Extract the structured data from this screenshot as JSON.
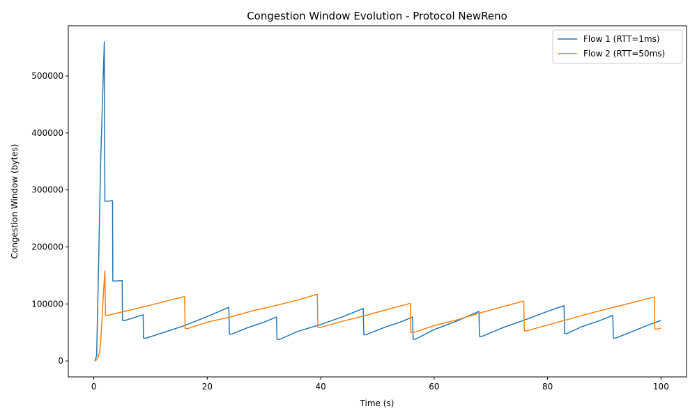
{
  "chart_data": {
    "type": "line",
    "title": "Congestion Window Evolution - Protocol NewReno",
    "xlabel": "Time (s)",
    "ylabel": "Congestion Window (bytes)",
    "xlim": [
      -4.5,
      104.5
    ],
    "ylim": [
      -28000,
      588000
    ],
    "xticks": [
      0,
      20,
      40,
      60,
      80,
      100
    ],
    "yticks": [
      0,
      100000,
      200000,
      300000,
      400000,
      500000
    ],
    "grid": false,
    "legend_position": "top-right",
    "series": [
      {
        "name": "Flow 1 (RTT=1ms)",
        "color": "#1f77b4",
        "points": [
          [
            0.2,
            0
          ],
          [
            0.5,
            10000
          ],
          [
            0.8,
            150000
          ],
          [
            1.2,
            350000
          ],
          [
            1.6,
            480000
          ],
          [
            1.85,
            560000
          ],
          [
            1.95,
            280000
          ],
          [
            3.3,
            281000
          ],
          [
            3.35,
            140000
          ],
          [
            5.0,
            141000
          ],
          [
            5.05,
            71000
          ],
          [
            5.5,
            71000
          ],
          [
            8.7,
            81000
          ],
          [
            8.75,
            40000
          ],
          [
            9.2,
            40000
          ],
          [
            12,
            49000
          ],
          [
            16,
            62000
          ],
          [
            20,
            78000
          ],
          [
            23.8,
            94000
          ],
          [
            23.9,
            47000
          ],
          [
            24.3,
            47000
          ],
          [
            27,
            58000
          ],
          [
            30,
            68000
          ],
          [
            32.2,
            77000
          ],
          [
            32.3,
            38000
          ],
          [
            32.8,
            38000
          ],
          [
            36,
            52000
          ],
          [
            40,
            64000
          ],
          [
            44,
            78000
          ],
          [
            47.5,
            92000
          ],
          [
            47.6,
            46000
          ],
          [
            48,
            46000
          ],
          [
            51,
            58000
          ],
          [
            54,
            68000
          ],
          [
            56.2,
            77000
          ],
          [
            56.3,
            38000
          ],
          [
            56.7,
            38000
          ],
          [
            60,
            55000
          ],
          [
            64,
            70000
          ],
          [
            67.9,
            87000
          ],
          [
            68.0,
            43000
          ],
          [
            68.4,
            43000
          ],
          [
            72,
            58000
          ],
          [
            76,
            72000
          ],
          [
            80,
            87000
          ],
          [
            82.9,
            97000
          ],
          [
            83.0,
            48000
          ],
          [
            83.4,
            48000
          ],
          [
            86,
            60000
          ],
          [
            89,
            70000
          ],
          [
            91.5,
            80000
          ],
          [
            91.6,
            40000
          ],
          [
            92.0,
            40000
          ],
          [
            95,
            52000
          ],
          [
            98,
            64000
          ],
          [
            100,
            71000
          ]
        ]
      },
      {
        "name": "Flow 2 (RTT=50ms)",
        "color": "#ff7f0e",
        "points": [
          [
            0.2,
            0
          ],
          [
            0.5,
            2000
          ],
          [
            0.8,
            8000
          ],
          [
            1.0,
            15000
          ],
          [
            1.2,
            33000
          ],
          [
            1.4,
            65000
          ],
          [
            1.7,
            120000
          ],
          [
            1.95,
            158000
          ],
          [
            2.05,
            80000
          ],
          [
            2.5,
            80000
          ],
          [
            5,
            86000
          ],
          [
            8,
            93000
          ],
          [
            12,
            103000
          ],
          [
            16.0,
            113000
          ],
          [
            16.1,
            57000
          ],
          [
            16.6,
            57000
          ],
          [
            20,
            68000
          ],
          [
            24,
            77000
          ],
          [
            28,
            88000
          ],
          [
            32,
            97000
          ],
          [
            36,
            107000
          ],
          [
            39.4,
            117000
          ],
          [
            39.5,
            59000
          ],
          [
            40,
            59000
          ],
          [
            44,
            70000
          ],
          [
            48,
            80000
          ],
          [
            52,
            91000
          ],
          [
            55.8,
            101000
          ],
          [
            55.9,
            50000
          ],
          [
            56.4,
            50000
          ],
          [
            60,
            62000
          ],
          [
            64,
            72000
          ],
          [
            68,
            84000
          ],
          [
            72,
            95000
          ],
          [
            75.8,
            105000
          ],
          [
            75.9,
            53000
          ],
          [
            76.4,
            53000
          ],
          [
            80,
            63000
          ],
          [
            84,
            74000
          ],
          [
            88,
            85000
          ],
          [
            92,
            95000
          ],
          [
            96,
            105000
          ],
          [
            98.8,
            112000
          ],
          [
            98.9,
            56000
          ],
          [
            99.5,
            56000
          ],
          [
            100,
            58000
          ]
        ]
      }
    ]
  }
}
